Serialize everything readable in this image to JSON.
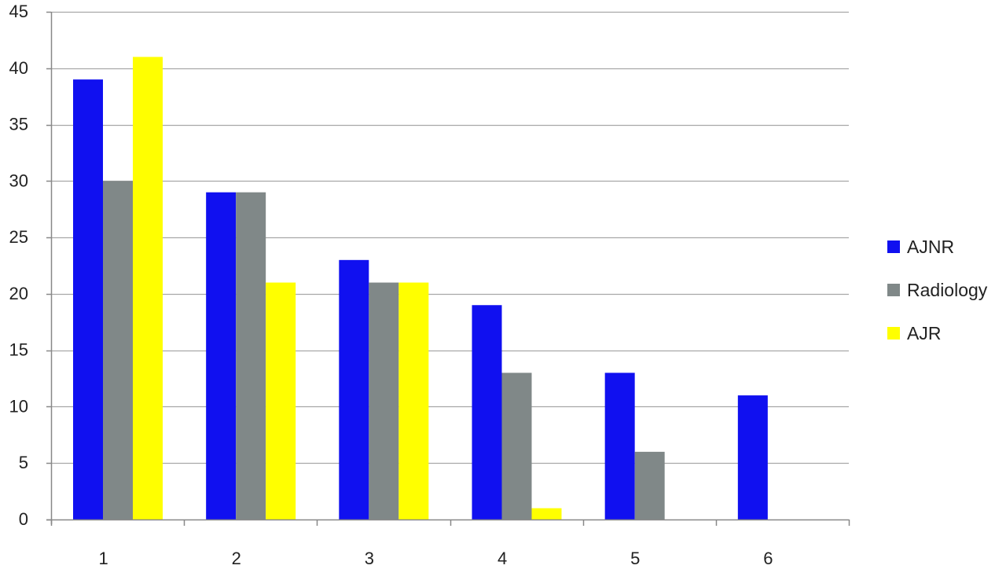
{
  "chart_data": {
    "type": "bar",
    "title": "",
    "xlabel": "",
    "ylabel": "",
    "categories": [
      "1",
      "2",
      "3",
      "4",
      "5",
      "6"
    ],
    "ylim": [
      0,
      45
    ],
    "yticks": [
      0,
      5,
      10,
      15,
      20,
      25,
      30,
      35,
      40,
      45
    ],
    "grid": true,
    "legend_position": "right",
    "series": [
      {
        "name": "AJNR",
        "color": "#1010f0",
        "values": [
          39,
          29,
          23,
          19,
          13,
          11
        ]
      },
      {
        "name": "Radiology",
        "color": "#808888",
        "values": [
          30,
          29,
          21,
          13,
          6,
          null
        ]
      },
      {
        "name": "AJR",
        "color": "#ffff00",
        "values": [
          41,
          21,
          21,
          1,
          null,
          null
        ]
      }
    ]
  }
}
